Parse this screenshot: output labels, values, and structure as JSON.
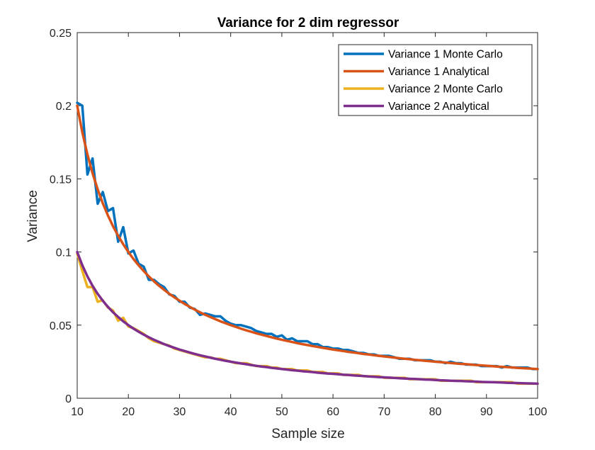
{
  "chart_data": {
    "type": "line",
    "title": "Variance for 2 dim regressor",
    "xlabel": "Sample size",
    "ylabel": "Variance",
    "xlim": [
      10,
      100
    ],
    "ylim": [
      0,
      0.25
    ],
    "grid": false,
    "legend_position": "top-right",
    "x_ticks": [
      10,
      20,
      30,
      40,
      50,
      60,
      70,
      80,
      90,
      100
    ],
    "x_tick_labels": [
      "10",
      "20",
      "30",
      "40",
      "50",
      "60",
      "70",
      "80",
      "90",
      "100"
    ],
    "y_ticks": [
      0,
      0.05,
      0.1,
      0.15,
      0.2,
      0.25
    ],
    "y_tick_labels": [
      "0",
      "0.05",
      "0.1",
      "0.15",
      "0.2",
      "0.25"
    ],
    "x": [
      10,
      11,
      12,
      13,
      14,
      15,
      16,
      17,
      18,
      19,
      20,
      21,
      22,
      23,
      24,
      25,
      26,
      27,
      28,
      29,
      30,
      31,
      32,
      33,
      34,
      35,
      36,
      37,
      38,
      39,
      40,
      41,
      42,
      43,
      44,
      45,
      46,
      47,
      48,
      49,
      50,
      51,
      52,
      53,
      54,
      55,
      56,
      57,
      58,
      59,
      60,
      61,
      62,
      63,
      64,
      65,
      66,
      67,
      68,
      69,
      70,
      71,
      72,
      73,
      74,
      75,
      76,
      77,
      78,
      79,
      80,
      81,
      82,
      83,
      84,
      85,
      86,
      87,
      88,
      89,
      90,
      91,
      92,
      93,
      94,
      95,
      96,
      97,
      98,
      99,
      100
    ],
    "series": [
      {
        "name": "Variance 1 Monte Carlo",
        "color": "#0072BD",
        "values": [
          0.202,
          0.2,
          0.153,
          0.164,
          0.133,
          0.141,
          0.128,
          0.13,
          0.107,
          0.117,
          0.099,
          0.101,
          0.092,
          0.09,
          0.081,
          0.081,
          0.078,
          0.076,
          0.071,
          0.07,
          0.066,
          0.066,
          0.062,
          0.061,
          0.057,
          0.058,
          0.057,
          0.056,
          0.056,
          0.053,
          0.051,
          0.05,
          0.05,
          0.049,
          0.048,
          0.046,
          0.045,
          0.044,
          0.044,
          0.042,
          0.043,
          0.04,
          0.041,
          0.039,
          0.039,
          0.039,
          0.037,
          0.037,
          0.035,
          0.035,
          0.034,
          0.034,
          0.033,
          0.033,
          0.032,
          0.031,
          0.031,
          0.03,
          0.03,
          0.029,
          0.029,
          0.029,
          0.028,
          0.027,
          0.027,
          0.027,
          0.026,
          0.026,
          0.026,
          0.026,
          0.025,
          0.025,
          0.024,
          0.025,
          0.024,
          0.024,
          0.023,
          0.023,
          0.023,
          0.022,
          0.022,
          0.022,
          0.022,
          0.021,
          0.022,
          0.021,
          0.021,
          0.021,
          0.021,
          0.02,
          0.02
        ]
      },
      {
        "name": "Variance 1 Analytical",
        "color": "#D95319",
        "values": [
          0.2,
          0.1818,
          0.1667,
          0.1538,
          0.1429,
          0.1333,
          0.125,
          0.1176,
          0.1111,
          0.1053,
          0.1,
          0.0952,
          0.0909,
          0.087,
          0.0833,
          0.08,
          0.0769,
          0.0741,
          0.0714,
          0.069,
          0.0667,
          0.0645,
          0.0625,
          0.0606,
          0.0588,
          0.0571,
          0.0556,
          0.0541,
          0.0526,
          0.0513,
          0.05,
          0.0488,
          0.0476,
          0.0465,
          0.0455,
          0.0444,
          0.0435,
          0.0426,
          0.0417,
          0.0408,
          0.04,
          0.0392,
          0.0385,
          0.0377,
          0.037,
          0.0364,
          0.0357,
          0.0351,
          0.0345,
          0.0339,
          0.0333,
          0.0328,
          0.0323,
          0.0317,
          0.0313,
          0.0308,
          0.0303,
          0.0299,
          0.0294,
          0.029,
          0.0286,
          0.0282,
          0.0278,
          0.0274,
          0.027,
          0.0267,
          0.0263,
          0.026,
          0.0256,
          0.0253,
          0.025,
          0.0247,
          0.0244,
          0.0241,
          0.0238,
          0.0235,
          0.0233,
          0.023,
          0.0227,
          0.0225,
          0.0222,
          0.022,
          0.0217,
          0.0215,
          0.0213,
          0.0211,
          0.0208,
          0.0206,
          0.0204,
          0.0202,
          0.02
        ]
      },
      {
        "name": "Variance 2 Monte Carlo",
        "color": "#EDB120",
        "values": [
          0.099,
          0.087,
          0.076,
          0.076,
          0.066,
          0.067,
          0.062,
          0.06,
          0.053,
          0.055,
          0.049,
          0.048,
          0.046,
          0.044,
          0.041,
          0.039,
          0.038,
          0.037,
          0.036,
          0.034,
          0.033,
          0.032,
          0.031,
          0.03,
          0.029,
          0.028,
          0.028,
          0.027,
          0.027,
          0.026,
          0.025,
          0.024,
          0.024,
          0.024,
          0.023,
          0.022,
          0.022,
          0.022,
          0.021,
          0.021,
          0.02,
          0.02,
          0.02,
          0.019,
          0.019,
          0.019,
          0.018,
          0.018,
          0.018,
          0.017,
          0.017,
          0.017,
          0.016,
          0.016,
          0.016,
          0.016,
          0.015,
          0.015,
          0.015,
          0.015,
          0.014,
          0.014,
          0.014,
          0.014,
          0.014,
          0.013,
          0.013,
          0.013,
          0.013,
          0.013,
          0.013,
          0.012,
          0.012,
          0.012,
          0.012,
          0.012,
          0.012,
          0.012,
          0.011,
          0.011,
          0.011,
          0.011,
          0.011,
          0.011,
          0.011,
          0.011,
          0.01,
          0.01,
          0.01,
          0.01,
          0.01
        ]
      },
      {
        "name": "Variance 2 Analytical",
        "color": "#7E2F8E",
        "values": [
          0.1,
          0.0909,
          0.0833,
          0.0769,
          0.0714,
          0.0667,
          0.0625,
          0.0588,
          0.0556,
          0.0526,
          0.05,
          0.0476,
          0.0455,
          0.0435,
          0.0417,
          0.04,
          0.0385,
          0.037,
          0.0357,
          0.0345,
          0.0333,
          0.0323,
          0.0313,
          0.0303,
          0.0294,
          0.0286,
          0.0278,
          0.027,
          0.0263,
          0.0256,
          0.025,
          0.0244,
          0.0238,
          0.0233,
          0.0227,
          0.0222,
          0.0217,
          0.0213,
          0.0208,
          0.0204,
          0.02,
          0.0196,
          0.0192,
          0.0189,
          0.0185,
          0.0182,
          0.0179,
          0.0175,
          0.0172,
          0.0169,
          0.0167,
          0.0164,
          0.0161,
          0.0159,
          0.0156,
          0.0154,
          0.0152,
          0.0149,
          0.0147,
          0.0145,
          0.0143,
          0.0141,
          0.0139,
          0.0137,
          0.0135,
          0.0133,
          0.0132,
          0.013,
          0.0128,
          0.0127,
          0.0125,
          0.0123,
          0.0122,
          0.012,
          0.0119,
          0.0118,
          0.0116,
          0.0115,
          0.0114,
          0.0112,
          0.0111,
          0.011,
          0.0109,
          0.0108,
          0.0106,
          0.0105,
          0.0104,
          0.0103,
          0.0102,
          0.0101,
          0.01
        ]
      }
    ]
  }
}
